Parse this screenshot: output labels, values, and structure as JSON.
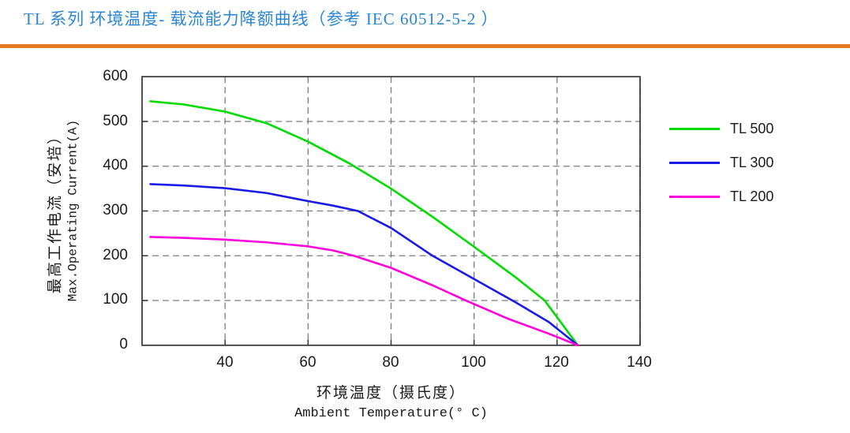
{
  "page": {
    "title": "TL 系列 环境温度- 载流能力降额曲线（参考 IEC 60512-5-2 ）",
    "title_color": "#2a86d3",
    "accent_color": "#e87722"
  },
  "chart_data": {
    "type": "line",
    "xlabel_zh": "环境温度（摄氏度）",
    "xlabel_en": "Ambient Temperature(° C)",
    "ylabel_zh": "最高工作电流（安培）",
    "ylabel_en": "Max.Operating Current(A)",
    "xlim": [
      20,
      140
    ],
    "ylim": [
      0,
      600
    ],
    "x_ticks": [
      40,
      60,
      80,
      100,
      120,
      140
    ],
    "y_ticks": [
      0,
      100,
      200,
      300,
      400,
      500,
      600
    ],
    "grid": true,
    "grid_style": "dashed",
    "legend_position": "right",
    "series": [
      {
        "name": "TL 500",
        "color": "#00dc00",
        "points": [
          [
            22,
            545
          ],
          [
            30,
            538
          ],
          [
            40,
            522
          ],
          [
            50,
            496
          ],
          [
            60,
            455
          ],
          [
            70,
            406
          ],
          [
            80,
            350
          ],
          [
            90,
            287
          ],
          [
            100,
            220
          ],
          [
            110,
            152
          ],
          [
            117,
            100
          ],
          [
            125,
            0
          ]
        ]
      },
      {
        "name": "TL 300",
        "color": "#1a1ae6",
        "points": [
          [
            22,
            360
          ],
          [
            30,
            357
          ],
          [
            40,
            351
          ],
          [
            50,
            340
          ],
          [
            60,
            322
          ],
          [
            66,
            312
          ],
          [
            72,
            300
          ],
          [
            80,
            262
          ],
          [
            90,
            200
          ],
          [
            100,
            148
          ],
          [
            110,
            96
          ],
          [
            118,
            52
          ],
          [
            125,
            0
          ]
        ]
      },
      {
        "name": "TL 200",
        "color": "#ff00dd",
        "points": [
          [
            22,
            242
          ],
          [
            30,
            240
          ],
          [
            40,
            236
          ],
          [
            50,
            230
          ],
          [
            60,
            221
          ],
          [
            66,
            212
          ],
          [
            71,
            200
          ],
          [
            80,
            173
          ],
          [
            90,
            134
          ],
          [
            98,
            100
          ],
          [
            108,
            60
          ],
          [
            118,
            26
          ],
          [
            125,
            0
          ]
        ]
      }
    ]
  }
}
